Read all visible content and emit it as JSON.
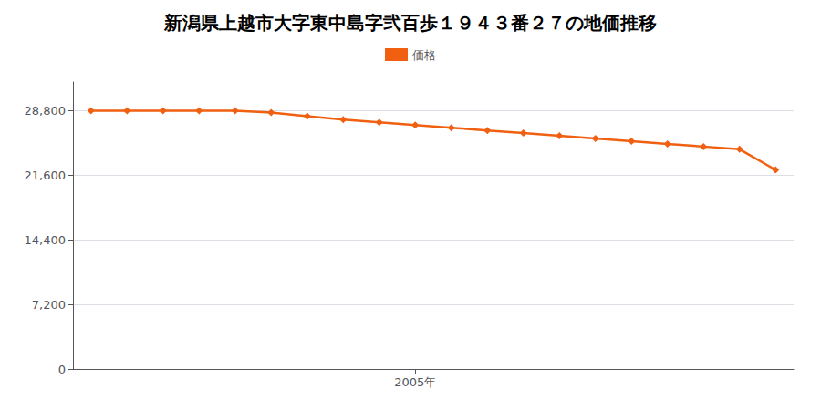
{
  "chart_data": {
    "type": "line",
    "title": "新潟県上越市大字東中島字弐百歩１９４３番２７の地価推移",
    "x": [
      1996,
      1997,
      1998,
      1999,
      2000,
      2001,
      2002,
      2003,
      2004,
      2005,
      2006,
      2007,
      2008,
      2009,
      2010,
      2011,
      2012,
      2013,
      2014,
      2015
    ],
    "series": [
      {
        "name": "価格",
        "color": "#f06010",
        "marker": "diamond",
        "values": [
          28800,
          28800,
          28800,
          28800,
          28800,
          28600,
          28200,
          27800,
          27500,
          27200,
          26900,
          26600,
          26300,
          26000,
          25700,
          25400,
          25100,
          24800,
          24500,
          22200
        ]
      }
    ],
    "xlim": [
      1995.5,
      2015.5
    ],
    "xticks": [
      {
        "value": 2005,
        "label": "2005年"
      }
    ],
    "ylim": [
      0,
      32000
    ],
    "yticks": [
      0,
      {
        "value": 7200,
        "label": "7,200"
      },
      {
        "value": 14400,
        "label": "14,400"
      },
      {
        "value": 21600,
        "label": "21,600"
      },
      {
        "value": 28800,
        "label": "28,800"
      }
    ],
    "grid": true,
    "legend": "top"
  }
}
